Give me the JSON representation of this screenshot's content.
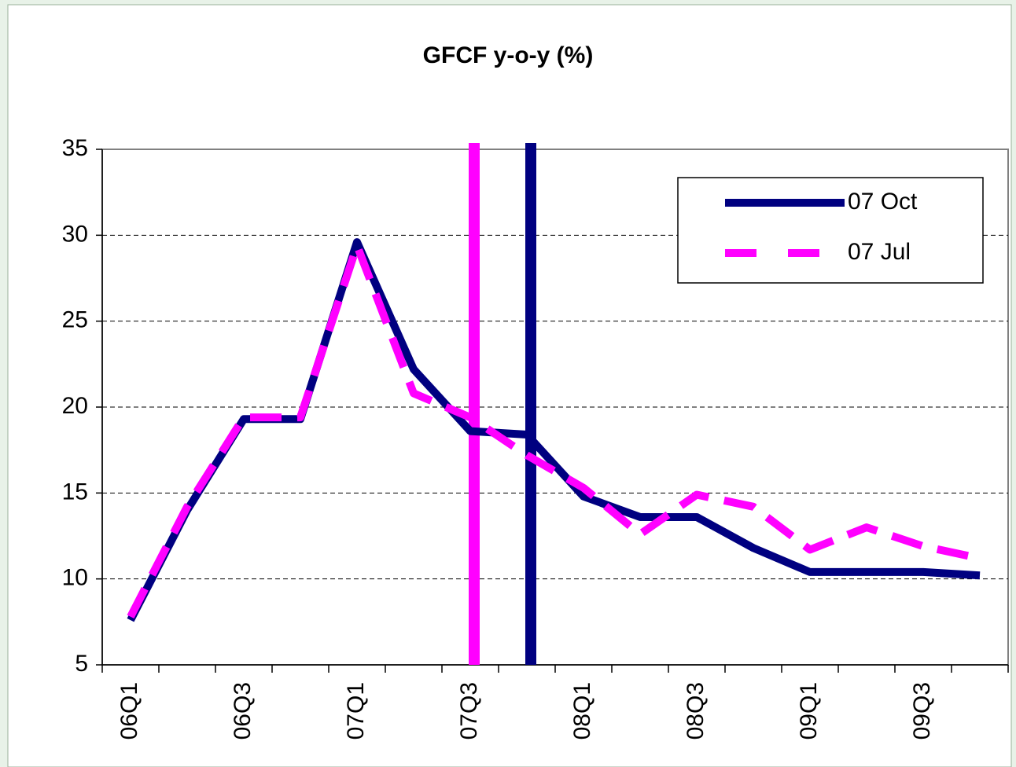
{
  "chart_data": {
    "type": "line",
    "title": "GFCF y-o-y (%)",
    "categories": [
      "06Q1",
      null,
      "06Q3",
      null,
      "07Q1",
      null,
      "07Q3",
      null,
      "08Q1",
      null,
      "08Q3",
      null,
      "09Q1",
      null,
      "09Q3",
      null
    ],
    "series": [
      {
        "name": "07 Oct",
        "color": "#000080",
        "dashed": false,
        "values": [
          7.6,
          14.0,
          19.3,
          19.3,
          29.6,
          22.2,
          18.6,
          18.4,
          14.8,
          13.6,
          13.6,
          11.8,
          10.4,
          10.4,
          10.4,
          10.2
        ]
      },
      {
        "name": "07 Jul",
        "color": "#ff00ff",
        "dashed": true,
        "values": [
          7.8,
          14.2,
          19.4,
          19.4,
          29.4,
          20.8,
          19.4,
          17.2,
          15.3,
          12.6,
          14.9,
          14.2,
          11.7,
          13.0,
          11.9,
          11.2
        ]
      }
    ],
    "vlines": [
      {
        "index": 6,
        "color": "#ff00ff"
      },
      {
        "index": 7,
        "color": "#000080"
      }
    ],
    "ylim": [
      5,
      35
    ],
    "yticks": [
      5,
      10,
      15,
      20,
      25,
      30,
      35
    ],
    "grid": true,
    "legend": "upper right"
  }
}
